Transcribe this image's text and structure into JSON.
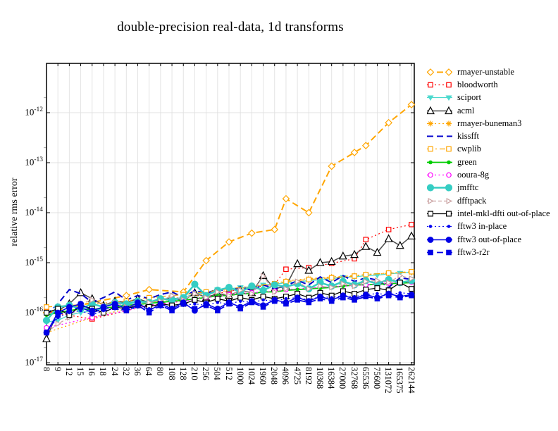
{
  "chart_data": {
    "type": "line",
    "title": "double-precision real-data, 1d transforms",
    "ylabel": "relative rms error",
    "xlabel": "",
    "y_scale": "log",
    "x_scale": "categorical",
    "ylim": [
      1e-17,
      1e-11
    ],
    "y_tick_exponents": [
      -12,
      -13,
      -14,
      -15,
      -16,
      -17
    ],
    "grid": true,
    "legend_position": "right",
    "categories": [
      "8",
      "9",
      "12",
      "15",
      "16",
      "18",
      "24",
      "32",
      "36",
      "64",
      "80",
      "108",
      "128",
      "210",
      "256",
      "504",
      "512",
      "1000",
      "1024",
      "1960",
      "2048",
      "4096",
      "4725",
      "8192",
      "10368",
      "16384",
      "27000",
      "32768",
      "65536",
      "75600",
      "131072",
      "165375",
      "262144"
    ],
    "series": [
      {
        "name": "rmayer-unstable",
        "color": "#FFA500",
        "line": "dash",
        "line_width": 2,
        "marker": "diamond",
        "marker_filled": false,
        "marker_size": 4.5,
        "values": [
          1e-16,
          null,
          null,
          null,
          1.6e-16,
          null,
          null,
          2.2e-16,
          null,
          2.9e-16,
          null,
          null,
          2.6e-16,
          null,
          1.1e-15,
          null,
          2.6e-15,
          null,
          3.9e-15,
          null,
          4.6e-15,
          1.9e-14,
          null,
          1e-14,
          null,
          8.5e-14,
          null,
          1.6e-13,
          2.2e-13,
          null,
          6.3e-13,
          null,
          1.45e-12
        ]
      },
      {
        "name": "bloodworth",
        "color": "#FF0000",
        "line": "dot",
        "line_width": 1.2,
        "marker": "square",
        "marker_filled": false,
        "marker_size": 3.2,
        "values": [
          1.05e-16,
          null,
          null,
          null,
          7.5e-17,
          null,
          null,
          1.1e-16,
          null,
          1.4e-16,
          null,
          null,
          1.7e-16,
          null,
          2.1e-16,
          null,
          2.7e-16,
          null,
          3.2e-16,
          null,
          3.7e-16,
          7.4e-16,
          null,
          8e-16,
          null,
          9.7e-16,
          null,
          1.2e-15,
          2.9e-15,
          null,
          4.6e-15,
          null,
          5.8e-15
        ]
      },
      {
        "name": "sciport",
        "color": "#4DD9CE",
        "line": "solid",
        "line_width": 1.3,
        "marker": "triangle-down",
        "marker_filled": true,
        "marker_size": 3.5,
        "values": [
          6.5e-17,
          7e-17,
          9e-17,
          1e-16,
          1.1e-16,
          1.2e-16,
          1.3e-16,
          1.5e-16,
          1.5e-16,
          1.7e-16,
          1.8e-16,
          1.9e-16,
          2e-16,
          2.4e-16,
          2.5e-16,
          2.9e-16,
          3e-16,
          3.2e-16,
          3.3e-16,
          3.6e-16,
          3.7e-16,
          4e-16,
          4.1e-16,
          4.4e-16,
          4.5e-16,
          4.8e-16,
          5.1e-16,
          5.2e-16,
          5.5e-16,
          5.6e-16,
          6e-16,
          6.2e-16,
          6.5e-16
        ]
      },
      {
        "name": "acml",
        "color": "#4D4D4D",
        "line": "solid",
        "line_width": 1.5,
        "marker": "triangle-up",
        "marker_filled": false,
        "marker_size": 4.5,
        "marker_stroke": "#000000",
        "values": [
          3e-17,
          1.1e-16,
          1.5e-16,
          2.5e-16,
          1.9e-16,
          1.4e-16,
          1.7e-16,
          1.6e-16,
          1.9e-16,
          1.6e-16,
          1.8e-16,
          2e-16,
          1.7e-16,
          2.5e-16,
          2e-16,
          2.4e-16,
          2.2e-16,
          2.8e-16,
          2.5e-16,
          5.5e-16,
          3e-16,
          3.4e-16,
          9.5e-16,
          7e-16,
          1e-15,
          1.05e-15,
          1.35e-15,
          1.45e-15,
          2.1e-15,
          1.6e-15,
          3e-15,
          2.2e-15,
          3.4e-15
        ]
      },
      {
        "name": "rmayer-buneman3",
        "color": "#FFA500",
        "line": "dot",
        "line_width": 1.3,
        "marker": "asterisk",
        "marker_filled": false,
        "marker_size": 4,
        "values": [
          4e-17,
          null,
          null,
          null,
          8e-17,
          null,
          null,
          1.2e-16,
          null,
          1.6e-16,
          null,
          null,
          2e-16,
          null,
          2.4e-16,
          null,
          2.8e-16,
          null,
          3.3e-16,
          null,
          3.8e-16,
          4.3e-16,
          null,
          4.8e-16,
          null,
          5.2e-16,
          null,
          5.5e-16,
          5.8e-16,
          null,
          6.1e-16,
          null,
          6.4e-16
        ]
      },
      {
        "name": "kissfft",
        "color": "#0000CC",
        "line": "dash",
        "line_width": 2,
        "marker": "none",
        "marker_filled": false,
        "marker_size": 0,
        "values": [
          9e-17,
          1.5e-16,
          2.9e-16,
          2.4e-16,
          1.6e-16,
          2e-16,
          2.6e-16,
          1.8e-16,
          2.2e-16,
          1.9e-16,
          2.3e-16,
          2.6e-16,
          2e-16,
          2.8e-16,
          2.4e-16,
          3e-16,
          2.6e-16,
          3.3e-16,
          2.8e-16,
          3.6e-16,
          3e-16,
          3.4e-16,
          4.4e-16,
          3.6e-16,
          5.2e-16,
          4e-16,
          5.5e-16,
          4.2e-16,
          5e-16,
          4.5e-16,
          3.2e-16,
          5e-16,
          4.6e-16
        ]
      },
      {
        "name": "cwplib",
        "color": "#FFA500",
        "line": "dashdot",
        "line_width": 1.3,
        "marker": "square",
        "marker_filled": false,
        "marker_size": 3.2,
        "values": [
          1.3e-16,
          null,
          null,
          null,
          1.5e-16,
          null,
          null,
          1.7e-16,
          null,
          2e-16,
          null,
          null,
          2.3e-16,
          null,
          2.6e-16,
          null,
          3e-16,
          null,
          3.4e-16,
          null,
          3.8e-16,
          4.2e-16,
          null,
          4.6e-16,
          null,
          5e-16,
          null,
          5.4e-16,
          5.8e-16,
          null,
          6.2e-16,
          null,
          6.6e-16
        ]
      },
      {
        "name": "green",
        "color": "#00CC00",
        "line": "solid",
        "line_width": 1.8,
        "marker": "circle",
        "marker_filled": true,
        "marker_size": 2.2,
        "values": [
          9e-17,
          1e-16,
          1.1e-16,
          1.2e-16,
          1.15e-16,
          1.25e-16,
          1.3e-16,
          1.4e-16,
          1.45e-16,
          1.55e-16,
          1.6e-16,
          1.7e-16,
          1.75e-16,
          1.9e-16,
          2e-16,
          2.2e-16,
          2.2e-16,
          2.4e-16,
          2.4e-16,
          2.6e-16,
          2.6e-16,
          2.8e-16,
          2.9e-16,
          3e-16,
          3.1e-16,
          3.2e-16,
          3.4e-16,
          3.6e-16,
          3.6e-16,
          3.7e-16,
          3.8e-16,
          3.9e-16,
          4e-16
        ]
      },
      {
        "name": "ooura-8g",
        "color": "#FF00FF",
        "line": "dot",
        "line_width": 1.2,
        "marker": "circle",
        "marker_filled": false,
        "marker_size": 3.2,
        "values": [
          5e-17,
          null,
          null,
          null,
          8e-17,
          null,
          null,
          1.1e-16,
          null,
          1.4e-16,
          null,
          null,
          1.7e-16,
          null,
          2e-16,
          null,
          2.3e-16,
          null,
          2.5e-16,
          null,
          2.7e-16,
          2.9e-16,
          null,
          3.1e-16,
          null,
          3.3e-16,
          null,
          3.5e-16,
          3.6e-16,
          null,
          3.9e-16,
          null,
          4.1e-16
        ]
      },
      {
        "name": "jmfftc",
        "color": "#35CDC3",
        "line": "solid",
        "line_width": 2.5,
        "marker": "circle",
        "marker_filled": true,
        "marker_size": 4.5,
        "values": [
          7e-17,
          1.3e-16,
          1.4e-16,
          1.2e-16,
          1.5e-16,
          1.3e-16,
          1.6e-16,
          1.5e-16,
          1.7e-16,
          1.6e-16,
          1.9e-16,
          1.8e-16,
          2e-16,
          3.7e-16,
          2.2e-16,
          2.8e-16,
          3.2e-16,
          2.6e-16,
          3.4e-16,
          2.8e-16,
          3.6e-16,
          3.3e-16,
          3.8e-16,
          3e-16,
          4e-16,
          3.4e-16,
          4.2e-16,
          3.6e-16,
          4.4e-16,
          3.8e-16,
          4.6e-16,
          4e-16,
          4.4e-16
        ]
      },
      {
        "name": "dfftpack",
        "color": "#C9A0A0",
        "line": "dashshort",
        "line_width": 1.2,
        "marker": "triangle-right",
        "marker_filled": false,
        "marker_size": 3.5,
        "values": [
          4e-17,
          6e-17,
          8e-17,
          1.5e-16,
          1.8e-16,
          1.4e-16,
          1.6e-16,
          1.3e-16,
          1.5e-16,
          1.6e-16,
          1.7e-16,
          2.2e-16,
          1.8e-16,
          2.4e-16,
          2e-16,
          2.6e-16,
          2.2e-16,
          2.8e-16,
          2.4e-16,
          5.4e-16,
          2.6e-16,
          3e-16,
          4.2e-16,
          3e-16,
          3.4e-16,
          3.2e-16,
          3.8e-16,
          3.4e-16,
          4.2e-16,
          4.4e-16,
          4e-16,
          5.5e-16,
          4.8e-16
        ]
      },
      {
        "name": "intel-mkl-dfti out-of-place",
        "color": "#000000",
        "line": "solid",
        "line_width": 1.3,
        "marker": "square",
        "marker_filled": false,
        "marker_size": 3.4,
        "values": [
          1e-16,
          1.2e-16,
          9e-17,
          1.4e-16,
          1.2e-16,
          1e-16,
          1.3e-16,
          1.2e-16,
          1.4e-16,
          1.3e-16,
          1.5e-16,
          1.4e-16,
          1.5e-16,
          1.8e-16,
          1.6e-16,
          1.9e-16,
          1.7e-16,
          2e-16,
          1.8e-16,
          2.1e-16,
          1.9e-16,
          2.1e-16,
          2.4e-16,
          2e-16,
          2.5e-16,
          2.2e-16,
          2.7e-16,
          2.4e-16,
          2.9e-16,
          3.1e-16,
          2.8e-16,
          4e-16,
          3e-16
        ]
      },
      {
        "name": "fftw3 in-place",
        "color": "#0000F0",
        "line": "dot",
        "line_width": 1.2,
        "marker": "circle",
        "marker_filled": true,
        "marker_size": 1.7,
        "values": [
          4e-17,
          8e-17,
          1e-16,
          1.1e-16,
          9e-17,
          1.1e-16,
          1.2e-16,
          1.1e-16,
          1.3e-16,
          1.2e-16,
          1.3e-16,
          1.2e-16,
          1.4e-16,
          1.5e-16,
          1.4e-16,
          1.6e-16,
          1.5e-16,
          1.7e-16,
          1.6e-16,
          1.8e-16,
          1.7e-16,
          1.9e-16,
          2e-16,
          1.8e-16,
          2.1e-16,
          2e-16,
          2.2e-16,
          2.1e-16,
          2.3e-16,
          2.4e-16,
          2.3e-16,
          2.5e-16,
          2.4e-16
        ]
      },
      {
        "name": "fftw3 out-of-place",
        "color": "#0000E6",
        "line": "solid",
        "line_width": 1.5,
        "marker": "circle",
        "marker_filled": true,
        "marker_size": 3.8,
        "values": [
          4e-17,
          1e-16,
          1.3e-16,
          1.5e-16,
          1.1e-16,
          1.3e-16,
          1.5e-16,
          1.2e-16,
          1.6e-16,
          1.1e-16,
          1.5e-16,
          1.2e-16,
          1.6e-16,
          1.1e-16,
          1.5e-16,
          1.2e-16,
          1.6e-16,
          1.3e-16,
          1.7e-16,
          1.4e-16,
          1.8e-16,
          1.6e-16,
          2e-16,
          1.7e-16,
          2.1e-16,
          1.8e-16,
          2.2e-16,
          1.9e-16,
          2.3e-16,
          2e-16,
          2.4e-16,
          2.1e-16,
          2.3e-16
        ]
      },
      {
        "name": "fftw3-r2r",
        "color": "#0000E6",
        "line": "dash",
        "line_width": 1.8,
        "marker": "square",
        "marker_filled": true,
        "marker_size": 3.2,
        "values": [
          4e-17,
          9e-17,
          1.1e-16,
          1.3e-16,
          1e-16,
          1.2e-16,
          1.3e-16,
          1.1e-16,
          1.4e-16,
          1e-16,
          1.4e-16,
          1.1e-16,
          1.5e-16,
          1.2e-16,
          1.4e-16,
          1.1e-16,
          1.5e-16,
          1.2e-16,
          1.6e-16,
          1.3e-16,
          1.7e-16,
          1.5e-16,
          1.8e-16,
          1.6e-16,
          1.9e-16,
          1.7e-16,
          2e-16,
          1.8e-16,
          2.1e-16,
          1.9e-16,
          2.2e-16,
          2e-16,
          2.2e-16
        ]
      }
    ]
  }
}
